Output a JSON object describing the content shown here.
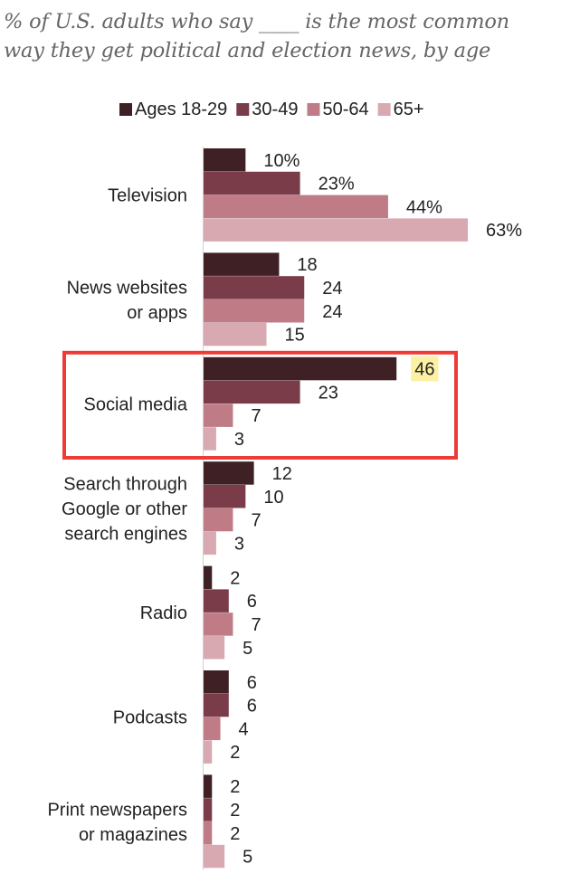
{
  "chart_data": {
    "type": "bar",
    "orientation": "horizontal",
    "subtitle": "% of U.S. adults who say ____ is the most common way they get political and election news, by age",
    "legend_position": "top",
    "grid": false,
    "xlim": [
      0,
      70
    ],
    "categories": [
      "Television",
      "News websites or apps",
      "Social media",
      "Search through Google or other search engines",
      "Radio",
      "Podcasts",
      "Print newspapers or magazines"
    ],
    "category_lines": [
      [
        "Television"
      ],
      [
        "News websites",
        "or apps"
      ],
      [
        "Social media"
      ],
      [
        "Search through",
        "Google or other",
        "search engines"
      ],
      [
        "Radio"
      ],
      [
        "Podcasts"
      ],
      [
        "Print newspapers",
        "or magazines"
      ]
    ],
    "series": [
      {
        "name": "Ages 18-29",
        "color": "#3e2025",
        "values": [
          10,
          18,
          46,
          12,
          2,
          6,
          2
        ]
      },
      {
        "name": "30-49",
        "color": "#7b3c4a",
        "values": [
          23,
          24,
          23,
          10,
          6,
          6,
          2
        ]
      },
      {
        "name": "50-64",
        "color": "#bf7c87",
        "values": [
          44,
          24,
          7,
          7,
          7,
          4,
          2
        ]
      },
      {
        "name": "65+",
        "color": "#d8a9b1",
        "values": [
          63,
          15,
          3,
          3,
          5,
          2,
          5
        ]
      }
    ],
    "data_labels": [
      [
        "10%",
        "23%",
        "44%",
        "63%"
      ],
      [
        "18",
        "24",
        "24",
        "15"
      ],
      [
        "46",
        "23",
        "7",
        "3"
      ],
      [
        "12",
        "10",
        "7",
        "3"
      ],
      [
        "2",
        "6",
        "7",
        "5"
      ],
      [
        "6",
        "6",
        "4",
        "2"
      ],
      [
        "2",
        "2",
        "2",
        "5"
      ]
    ],
    "highlight": {
      "category_index": 2,
      "box_color": "#ee3b36",
      "label_bg_color": "#fbf0a4",
      "highlighted_series_index": 0
    }
  }
}
